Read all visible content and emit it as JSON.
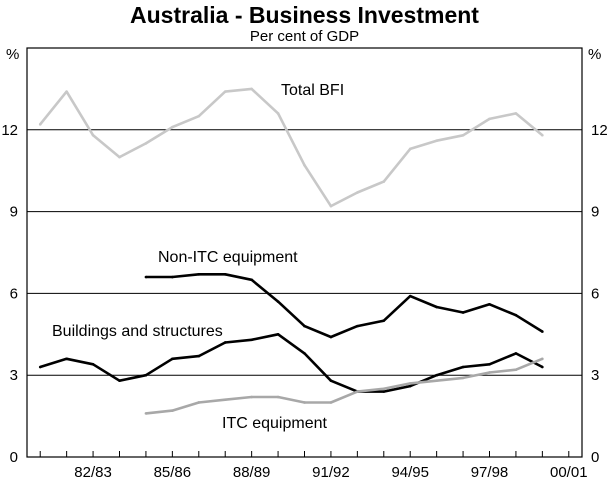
{
  "chart_data": {
    "type": "line",
    "title": "Australia - Business Investment",
    "subtitle": "Per cent of GDP",
    "ylabel_left": "%",
    "ylabel_right": "%",
    "ylim": [
      0,
      15
    ],
    "yticks": [
      0,
      3,
      6,
      9,
      12
    ],
    "grid": true,
    "x": [
      "80/81",
      "81/82",
      "82/83",
      "83/84",
      "84/85",
      "85/86",
      "86/87",
      "87/88",
      "88/89",
      "89/90",
      "90/91",
      "91/92",
      "92/93",
      "93/94",
      "94/95",
      "95/96",
      "96/97",
      "97/98",
      "98/99",
      "99/00",
      "00/01"
    ],
    "x_tick_labels": [
      "82/83",
      "85/86",
      "88/89",
      "91/92",
      "94/95",
      "97/98",
      "00/01"
    ],
    "series": [
      {
        "name": "Total BFI",
        "color": "#c8c8c8",
        "values": [
          12.2,
          13.4,
          11.8,
          11.0,
          11.5,
          12.1,
          12.5,
          13.4,
          13.5,
          12.6,
          10.7,
          9.2,
          9.7,
          10.1,
          11.3,
          11.6,
          11.8,
          12.4,
          12.6,
          11.8,
          null
        ]
      },
      {
        "name": "Non-ITC equipment",
        "color": "#000000",
        "values": [
          null,
          null,
          null,
          null,
          6.6,
          6.6,
          6.7,
          6.7,
          6.5,
          5.7,
          4.8,
          4.4,
          4.8,
          5.0,
          5.9,
          5.5,
          5.3,
          5.6,
          5.2,
          4.6,
          null
        ]
      },
      {
        "name": "Buildings and structures",
        "color": "#000000",
        "values": [
          3.3,
          3.6,
          3.4,
          2.8,
          3.0,
          3.6,
          3.7,
          4.2,
          4.3,
          4.5,
          3.8,
          2.8,
          2.4,
          2.4,
          2.6,
          3.0,
          3.3,
          3.4,
          3.8,
          3.3,
          null
        ]
      },
      {
        "name": "ITC equipment",
        "color": "#a8a8a8",
        "values": [
          null,
          null,
          null,
          null,
          1.6,
          1.7,
          2.0,
          2.1,
          2.2,
          2.2,
          2.0,
          2.0,
          2.4,
          2.5,
          2.7,
          2.8,
          2.9,
          3.1,
          3.2,
          3.6,
          null
        ]
      }
    ],
    "annotations": [
      "Total BFI",
      "Non-ITC equipment",
      "Buildings and structures",
      "ITC equipment"
    ]
  }
}
